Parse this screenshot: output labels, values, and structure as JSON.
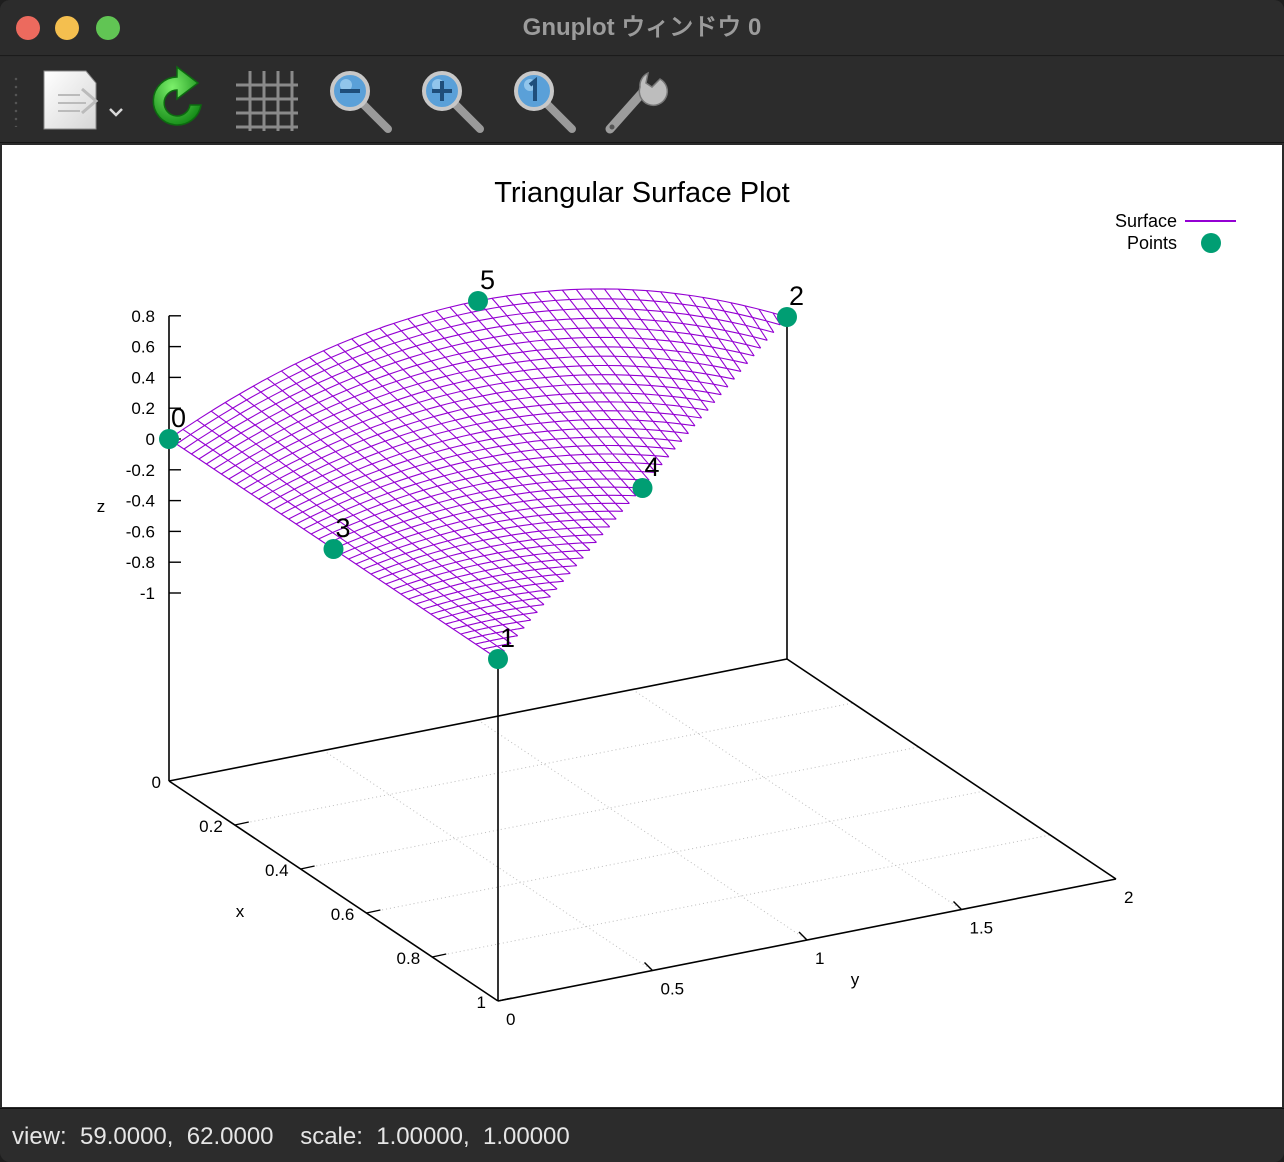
{
  "window": {
    "title": "Gnuplot ウィンドウ 0"
  },
  "toolbar": {
    "buttons": [
      {
        "name": "export-button",
        "icon": "export-document-icon"
      },
      {
        "name": "replot-button",
        "icon": "refresh-icon"
      },
      {
        "name": "grid-button",
        "icon": "grid-icon"
      },
      {
        "name": "zoom-out-button",
        "icon": "zoom-out-icon"
      },
      {
        "name": "zoom-in-button",
        "icon": "zoom-in-icon"
      },
      {
        "name": "zoom-reset-button",
        "icon": "zoom-reset-icon"
      },
      {
        "name": "settings-button",
        "icon": "wrench-icon"
      }
    ]
  },
  "status": {
    "text": "view:  59.0000,  62.0000    scale:  1.00000,  1.00000"
  },
  "chart_data": {
    "type": "surface3d",
    "title": "Triangular Surface Plot",
    "xlabel": "x",
    "ylabel": "y",
    "zlabel": "z",
    "xlim": [
      0,
      1
    ],
    "ylim": [
      0,
      2
    ],
    "zlim": [
      -1,
      0.8
    ],
    "x_ticks": [
      "0",
      "0.2",
      "0.4",
      "0.6",
      "0.8",
      "1"
    ],
    "y_ticks": [
      "0",
      "0.5",
      "1",
      "1.5",
      "2"
    ],
    "z_ticks": [
      "0.8",
      "0.6",
      "0.4",
      "0.2",
      "0",
      "-0.2",
      "-0.4",
      "-0.6",
      "-0.8",
      "-1"
    ],
    "base_z_label": "0",
    "view": [
      59,
      62
    ],
    "grid": true,
    "legend_position": "top-right",
    "legend": [
      {
        "name": "Surface",
        "color": "#9400d3",
        "style": "line"
      },
      {
        "name": "Points",
        "color": "#009e73",
        "style": "point"
      }
    ],
    "points": [
      {
        "label": "0",
        "x": 0,
        "y": 0,
        "z": 0
      },
      {
        "label": "1",
        "x": 1,
        "y": 0,
        "z": 0
      },
      {
        "label": "2",
        "x": 0,
        "y": 2,
        "z": 0
      },
      {
        "label": "3",
        "x": 0.5,
        "y": 0,
        "z": 0
      },
      {
        "label": "4",
        "x": 0.5,
        "y": 1,
        "z": 0
      },
      {
        "label": "5",
        "x": 0,
        "y": 1,
        "z": 0.5
      }
    ]
  }
}
